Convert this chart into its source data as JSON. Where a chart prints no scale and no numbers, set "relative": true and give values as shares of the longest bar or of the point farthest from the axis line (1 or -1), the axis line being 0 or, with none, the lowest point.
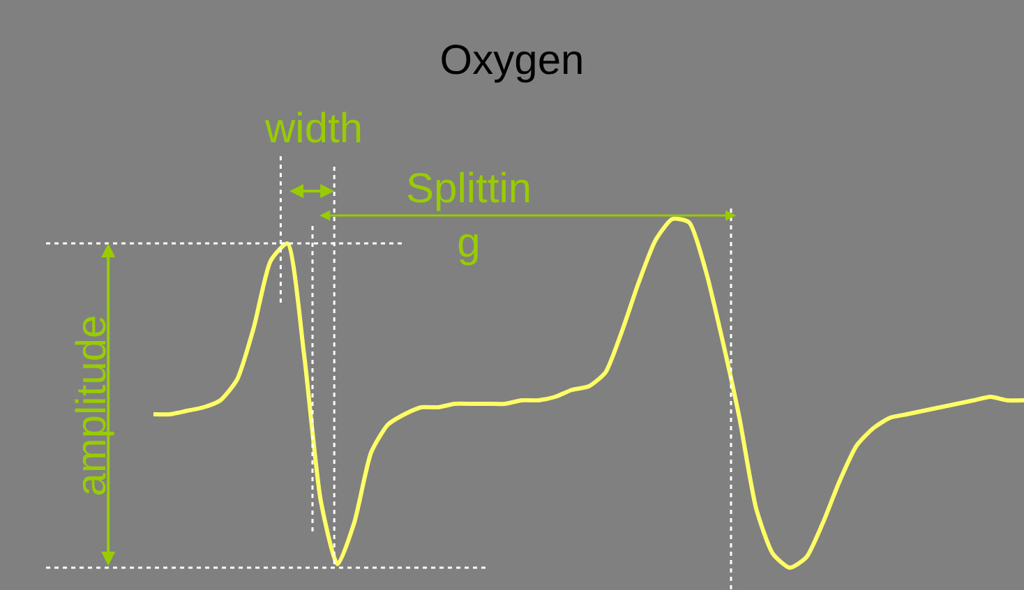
{
  "chart_data": {
    "type": "line",
    "title": "Oxygen",
    "relative": true,
    "categories": [
      null,
      null,
      null,
      null,
      null,
      null,
      null,
      null,
      null,
      null,
      null,
      null,
      null,
      null,
      null,
      null,
      null,
      null,
      null,
      null,
      null,
      null,
      null,
      null,
      null,
      null,
      null,
      null,
      null,
      null,
      null,
      null,
      null,
      null,
      null,
      null,
      null,
      null,
      null,
      null,
      null,
      null,
      null,
      null,
      null,
      null,
      null,
      null,
      null,
      null,
      null,
      null,
      null
    ],
    "series": [
      {
        "color": "#ffff66",
        "values": [
          0.44,
          0.44,
          0.45,
          0.46,
          0.48,
          0.54,
          0.69,
          0.88,
          0.93,
          0.61,
          0.19,
          0.01,
          0.13,
          0.33,
          0.41,
          0.44,
          0.46,
          0.46,
          0.47,
          0.47,
          0.47,
          0.47,
          0.48,
          0.48,
          0.49,
          0.51,
          0.52,
          0.56,
          0.68,
          0.82,
          0.94,
          1.0,
          0.99,
          0.85,
          0.65,
          0.43,
          0.17,
          0.04,
          0.0,
          0.03,
          0.13,
          0.25,
          0.35,
          0.4,
          0.43,
          0.44,
          0.45,
          0.46,
          0.47,
          0.48,
          0.49,
          0.48,
          0.48
        ]
      }
    ],
    "annotations": [
      "amplitude",
      "width",
      "Splittin\ng"
    ],
    "grid": false,
    "marker": "none",
    "line_style": "solid"
  }
}
